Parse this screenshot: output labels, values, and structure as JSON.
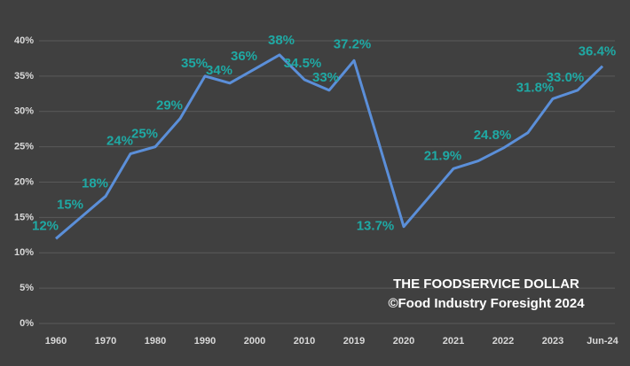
{
  "chart_data": {
    "type": "line",
    "annotations": [
      "THE FOODSERVICE DOLLAR",
      "©Food Industry Foresight 2024"
    ],
    "categories": [
      "1960",
      null,
      "1970",
      null,
      "1980",
      null,
      "1990",
      null,
      "2000",
      null,
      "2010",
      null,
      "2019",
      null,
      "2020",
      null,
      "2021",
      null,
      "2022",
      null,
      "2023",
      null,
      "Jun-24"
    ],
    "series": [
      {
        "color": "#5b8fd9",
        "values": [
          12,
          15,
          18,
          24,
          25,
          29,
          35,
          34,
          36,
          38,
          34.5,
          33,
          37.2,
          25.5,
          13.7,
          17.8,
          21.9,
          23,
          24.8,
          27,
          31.8,
          33.0,
          36.4
        ],
        "value_labels": [
          "12%",
          "15%",
          "18%",
          "24%",
          "25%",
          "29%",
          "35%",
          "34%",
          "36%",
          "38%",
          "34.5%",
          "33%",
          "37.2%",
          null,
          "13.7%",
          null,
          "21.9%",
          null,
          "24.8%",
          null,
          "31.8%",
          "33.0%",
          "36.4%"
        ]
      }
    ],
    "ylim": [
      0,
      40
    ],
    "yticks": [
      {
        "value": 0,
        "label": "0%"
      },
      {
        "value": 5,
        "label": "5%"
      },
      {
        "value": 10,
        "label": "10%"
      },
      {
        "value": 15,
        "label": "15%"
      },
      {
        "value": 20,
        "label": "20%"
      },
      {
        "value": 25,
        "label": "25%"
      },
      {
        "value": 30,
        "label": "30%"
      },
      {
        "value": 35,
        "label": "35%"
      },
      {
        "value": 40,
        "label": "40%"
      }
    ],
    "grid": true
  }
}
